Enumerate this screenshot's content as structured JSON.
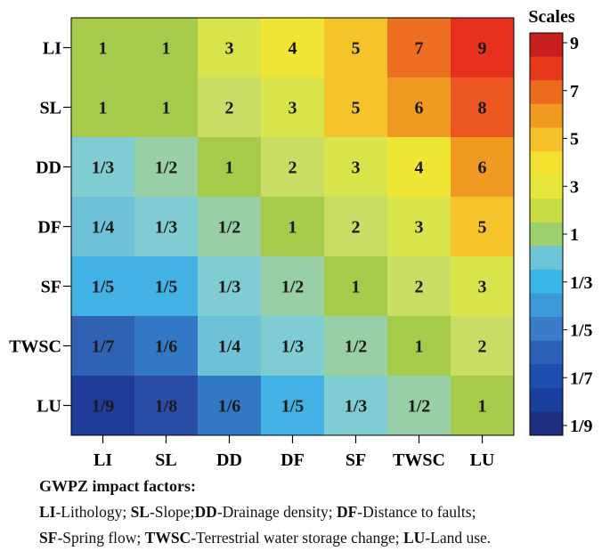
{
  "chart_data": {
    "type": "heatmap",
    "factors": [
      "LI",
      "SL",
      "DD",
      "DF",
      "SF",
      "TWSC",
      "LU"
    ],
    "rows": [
      "LI",
      "SL",
      "DD",
      "DF",
      "SF",
      "TWSC",
      "LU"
    ],
    "columns": [
      "LI",
      "SL",
      "DD",
      "DF",
      "SF",
      "TWSC",
      "LU"
    ],
    "labels": [
      [
        "1",
        "1",
        "3",
        "4",
        "5",
        "7",
        "9"
      ],
      [
        "1",
        "1",
        "2",
        "3",
        "5",
        "6",
        "8"
      ],
      [
        "1/3",
        "1/2",
        "1",
        "2",
        "3",
        "4",
        "6"
      ],
      [
        "1/4",
        "1/3",
        "1/2",
        "1",
        "2",
        "3",
        "5"
      ],
      [
        "1/5",
        "1/5",
        "1/3",
        "1/2",
        "1",
        "2",
        "3"
      ],
      [
        "1/7",
        "1/6",
        "1/4",
        "1/3",
        "1/2",
        "1",
        "2"
      ],
      [
        "1/9",
        "1/8",
        "1/6",
        "1/5",
        "1/3",
        "1/2",
        "1"
      ]
    ],
    "values": [
      [
        1,
        1,
        3,
        4,
        5,
        7,
        9
      ],
      [
        1,
        1,
        2,
        3,
        5,
        6,
        8
      ],
      [
        0.3333,
        0.5,
        1,
        2,
        3,
        4,
        6
      ],
      [
        0.25,
        0.3333,
        0.5,
        1,
        2,
        3,
        5
      ],
      [
        0.2,
        0.2,
        0.3333,
        0.5,
        1,
        2,
        3
      ],
      [
        0.1429,
        0.1667,
        0.25,
        0.3333,
        0.5,
        1,
        2
      ],
      [
        0.1111,
        0.125,
        0.1667,
        0.2,
        0.3333,
        0.5,
        1
      ]
    ],
    "colorbar": {
      "title": "Scales",
      "levels": [
        "1/9",
        "1/8",
        "1/7",
        "1/6",
        "1/5",
        "1/4",
        "1/3",
        "1/2",
        "1",
        "2",
        "3",
        "4",
        "5",
        "6",
        "7",
        "8",
        "9"
      ],
      "colors": [
        "#1e2f80",
        "#1b3f9c",
        "#1f4fae",
        "#2b5fb8",
        "#3a7cc8",
        "#3c98d6",
        "#3ab7e6",
        "#6cc4d6",
        "#9ccf6e",
        "#c8dc45",
        "#e7e73a",
        "#f2e12f",
        "#f5c02a",
        "#f19a20",
        "#ec6a1d",
        "#e8381b",
        "#c61f1e"
      ],
      "tick_labels": [
        "9",
        "7",
        "5",
        "3",
        "1",
        "1/3",
        "1/5",
        "1/7",
        "1/9"
      ]
    },
    "cell_colors": [
      [
        "#a6cb4a",
        "#a6cb4a",
        "#d9e34a",
        "#f0e534",
        "#f5c32a",
        "#ef6f22",
        "#e8301f"
      ],
      [
        "#a6cb4a",
        "#a6cb4a",
        "#c9dc66",
        "#d9e34a",
        "#f5c32a",
        "#f19a22",
        "#ec5620"
      ],
      [
        "#7fccd3",
        "#98cfa6",
        "#a6cb4a",
        "#c9dc66",
        "#d9e34a",
        "#f0e534",
        "#f19a22"
      ],
      [
        "#6ec1d6",
        "#7fccd3",
        "#98cfa6",
        "#a6cb4a",
        "#c9dc66",
        "#d9e34a",
        "#f5c32a"
      ],
      [
        "#42b1e4",
        "#42b1e4",
        "#7fccd3",
        "#98cfa6",
        "#a6cb4a",
        "#c9dc66",
        "#d9e34a"
      ],
      [
        "#2f62b2",
        "#3278c4",
        "#6ec1d6",
        "#7fccd3",
        "#98cfa6",
        "#a6cb4a",
        "#c9dc66"
      ],
      [
        "#1e3c98",
        "#2a4ea8",
        "#3278c4",
        "#42b1e4",
        "#7fccd3",
        "#98cfa6",
        "#a6cb4a"
      ]
    ]
  },
  "legend": {
    "title": "GWPZ impact factors:",
    "entries": [
      {
        "abbr": "LI",
        "desc": "-Lithology; "
      },
      {
        "abbr": "SL",
        "desc": "-Slope;"
      },
      {
        "abbr": "DD",
        "desc": "-Drainage density; "
      },
      {
        "abbr": "DF",
        "desc": "-Distance to faults;"
      },
      {
        "abbr": "SF",
        "desc": "-Spring flow; "
      },
      {
        "abbr": "TWSC",
        "desc": "-Terrestrial water storage change; "
      },
      {
        "abbr": "LU",
        "desc": "-Land use."
      }
    ]
  }
}
